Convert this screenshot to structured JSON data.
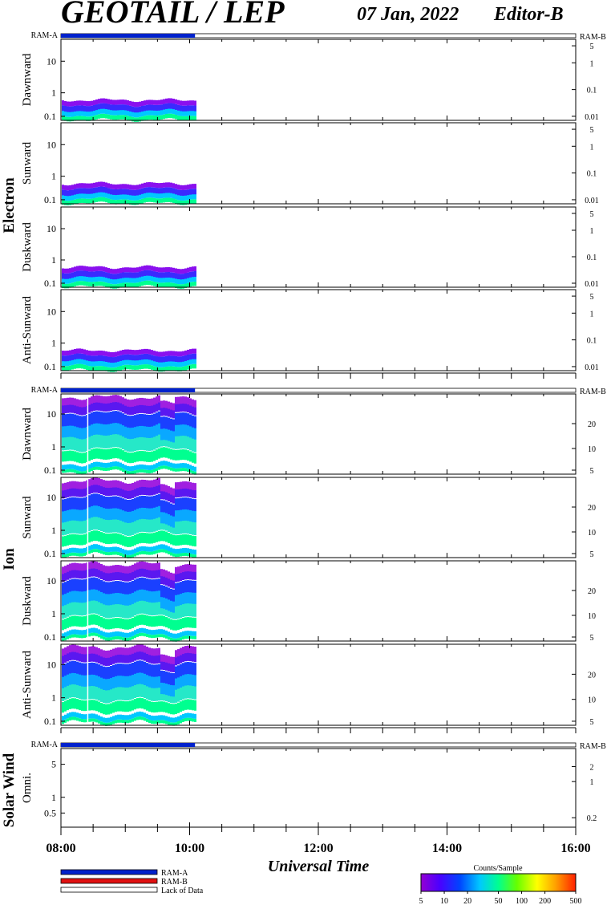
{
  "header": {
    "title": "GEOTAIL / LEP",
    "date": "07 Jan, 2022",
    "editor": "Editor-B"
  },
  "ram_labels": {
    "left": "RAM-A",
    "right": "RAM-B"
  },
  "groups": {
    "electron": "Electron",
    "ion": "Ion",
    "solar_wind": "Solar Wind"
  },
  "chart_data": [
    {
      "type": "heatmap",
      "group": "Electron",
      "ram": {
        "ram_a_until": "10:05"
      },
      "x": {
        "range": [
          "08:00",
          "16:00"
        ],
        "data_until": "10:05"
      },
      "panels": [
        {
          "name": "Dawnward",
          "left_ticks": [
            "10",
            "1",
            "0.1"
          ],
          "right_ticks": [
            "5",
            "1",
            "0.1",
            "0.01"
          ]
        },
        {
          "name": "Sunward",
          "left_ticks": [
            "10",
            "1",
            "0.1"
          ],
          "right_ticks": [
            "5",
            "1",
            "0.1",
            "0.01"
          ]
        },
        {
          "name": "Duskward",
          "left_ticks": [
            "10",
            "1",
            "0.1"
          ],
          "right_ticks": [
            "5",
            "1",
            "0.1",
            "0.01"
          ]
        },
        {
          "name": "Anti-Sunward",
          "left_ticks": [
            "10",
            "1",
            "0.1"
          ],
          "right_ticks": [
            "5",
            "1",
            "0.1",
            "0.01"
          ]
        }
      ]
    },
    {
      "type": "heatmap",
      "group": "Ion",
      "ram": {
        "ram_a_until": "10:05"
      },
      "x": {
        "range": [
          "08:00",
          "16:00"
        ],
        "data_until": "10:05"
      },
      "panels": [
        {
          "name": "Dawnward",
          "left_ticks": [
            "10",
            "1",
            "0.1"
          ],
          "right_ticks": [
            "20",
            "10",
            "5"
          ]
        },
        {
          "name": "Sunward",
          "left_ticks": [
            "10",
            "1",
            "0.1"
          ],
          "right_ticks": [
            "20",
            "10",
            "5"
          ]
        },
        {
          "name": "Duskward",
          "left_ticks": [
            "10",
            "1",
            "0.1"
          ],
          "right_ticks": [
            "20",
            "10",
            "5"
          ]
        },
        {
          "name": "Anti-Sunward",
          "left_ticks": [
            "10",
            "1",
            "0.1"
          ],
          "right_ticks": [
            "20",
            "10",
            "5"
          ]
        }
      ]
    },
    {
      "type": "heatmap",
      "group": "Solar Wind",
      "ram": {
        "ram_a_until": "10:05"
      },
      "x": {
        "range": [
          "08:00",
          "16:00"
        ],
        "data_until": null
      },
      "panels": [
        {
          "name": "Omni.",
          "left_ticks": [
            "5",
            "1",
            "0.5"
          ],
          "right_ticks": [
            "2",
            "1",
            "0.2"
          ]
        }
      ]
    }
  ],
  "x_axis": {
    "ticks": [
      "08:00",
      "10:00",
      "12:00",
      "14:00",
      "16:00"
    ],
    "label": "Universal Time"
  },
  "legend": {
    "items": [
      {
        "label": "RAM-A",
        "color": "#0022cc"
      },
      {
        "label": "RAM-B",
        "color": "#e01010"
      },
      {
        "label": "Lack of Data",
        "color": "#ffffff"
      }
    ]
  },
  "colorbar": {
    "title": "Counts/Sample",
    "ticks": [
      "5",
      "10",
      "20",
      "50",
      "100",
      "200",
      "500"
    ],
    "colors": [
      "#9400d3",
      "#4b00ff",
      "#0044ff",
      "#00c8ff",
      "#00ff90",
      "#66ff00",
      "#ffff00",
      "#ffa000",
      "#ff2000"
    ]
  }
}
